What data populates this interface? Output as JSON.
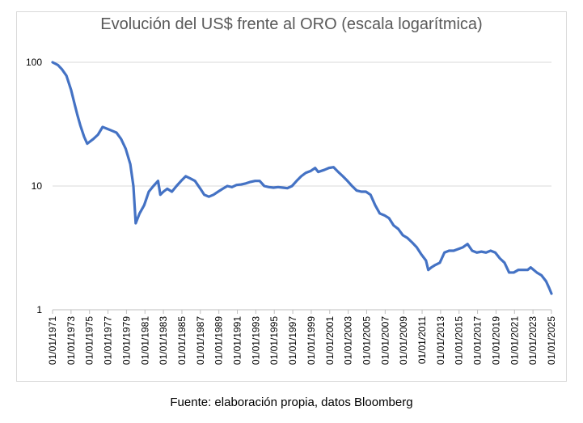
{
  "chart_data": {
    "type": "line",
    "title": "Evolución del US$ frente al ORO  (escala logarítmica)",
    "xlabel": "",
    "ylabel": "",
    "y_scale": "log",
    "ylim": [
      1,
      100
    ],
    "y_ticks": [
      "1",
      "10",
      "100"
    ],
    "x_tick_labels": [
      "01/01/1971",
      "01/01/1973",
      "01/01/1975",
      "01/01/1977",
      "01/01/1979",
      "01/01/1981",
      "01/01/1983",
      "01/01/1985",
      "01/01/1987",
      "01/01/1989",
      "01/01/1991",
      "01/01/1993",
      "01/01/1995",
      "01/01/1997",
      "01/01/1999",
      "01/01/2001",
      "01/01/2003",
      "01/01/2005",
      "01/01/2007",
      "01/01/2009",
      "01/01/2011",
      "01/01/2013",
      "01/01/2015",
      "01/01/2017",
      "01/01/2019",
      "01/01/2021",
      "01/01/2023",
      "01/01/2025"
    ],
    "grid": true,
    "legend": "none",
    "color": "#4472c4",
    "series": [
      {
        "points": [
          [
            "1971-01-01",
            100
          ],
          [
            "1971-08-01",
            95
          ],
          [
            "1972-01-01",
            88
          ],
          [
            "1972-07-01",
            78
          ],
          [
            "1973-01-01",
            60
          ],
          [
            "1973-06-01",
            45
          ],
          [
            "1973-09-01",
            38
          ],
          [
            "1974-01-01",
            31
          ],
          [
            "1974-06-01",
            25
          ],
          [
            "1974-10-01",
            22
          ],
          [
            "1975-06-01",
            24
          ],
          [
            "1975-12-01",
            26
          ],
          [
            "1976-06-01",
            30
          ],
          [
            "1976-12-01",
            29
          ],
          [
            "1977-06-01",
            28
          ],
          [
            "1977-12-01",
            27
          ],
          [
            "1978-06-01",
            24
          ],
          [
            "1978-12-01",
            20
          ],
          [
            "1979-06-01",
            15
          ],
          [
            "1979-10-01",
            10
          ],
          [
            "1980-01-01",
            5
          ],
          [
            "1980-06-01",
            6
          ],
          [
            "1980-12-01",
            7
          ],
          [
            "1981-06-01",
            9
          ],
          [
            "1981-12-01",
            10
          ],
          [
            "1982-06-01",
            11
          ],
          [
            "1982-09-01",
            8.5
          ],
          [
            "1983-01-01",
            9
          ],
          [
            "1983-06-01",
            9.5
          ],
          [
            "1983-12-01",
            9
          ],
          [
            "1984-06-01",
            10
          ],
          [
            "1984-12-01",
            11
          ],
          [
            "1985-06-01",
            12
          ],
          [
            "1985-12-01",
            11.5
          ],
          [
            "1986-06-01",
            11
          ],
          [
            "1987-01-01",
            9.5
          ],
          [
            "1987-06-01",
            8.5
          ],
          [
            "1987-12-01",
            8.2
          ],
          [
            "1988-06-01",
            8.5
          ],
          [
            "1988-12-01",
            9
          ],
          [
            "1989-06-01",
            9.5
          ],
          [
            "1989-12-01",
            10
          ],
          [
            "1990-06-01",
            9.8
          ],
          [
            "1990-12-01",
            10.2
          ],
          [
            "1991-06-01",
            10.3
          ],
          [
            "1991-12-01",
            10.5
          ],
          [
            "1992-06-01",
            10.8
          ],
          [
            "1992-12-01",
            11
          ],
          [
            "1993-06-01",
            11
          ],
          [
            "1993-12-01",
            10
          ],
          [
            "1994-06-01",
            9.8
          ],
          [
            "1994-12-01",
            9.7
          ],
          [
            "1995-06-01",
            9.8
          ],
          [
            "1995-12-01",
            9.7
          ],
          [
            "1996-06-01",
            9.6
          ],
          [
            "1996-12-01",
            10
          ],
          [
            "1997-06-01",
            11
          ],
          [
            "1997-12-01",
            12
          ],
          [
            "1998-06-01",
            12.8
          ],
          [
            "1998-12-01",
            13.2
          ],
          [
            "1999-06-01",
            14
          ],
          [
            "1999-10-01",
            13
          ],
          [
            "2000-06-01",
            13.5
          ],
          [
            "2000-12-01",
            14
          ],
          [
            "2001-06-01",
            14.2
          ],
          [
            "2001-12-01",
            13
          ],
          [
            "2002-06-01",
            12
          ],
          [
            "2002-12-01",
            11
          ],
          [
            "2003-06-01",
            10
          ],
          [
            "2003-12-01",
            9.2
          ],
          [
            "2004-06-01",
            9
          ],
          [
            "2004-12-01",
            9
          ],
          [
            "2005-06-01",
            8.5
          ],
          [
            "2005-12-01",
            7
          ],
          [
            "2006-06-01",
            6
          ],
          [
            "2006-12-01",
            5.8
          ],
          [
            "2007-06-01",
            5.5
          ],
          [
            "2007-12-01",
            4.8
          ],
          [
            "2008-06-01",
            4.5
          ],
          [
            "2008-12-01",
            4
          ],
          [
            "2009-06-01",
            3.8
          ],
          [
            "2009-12-01",
            3.5
          ],
          [
            "2010-06-01",
            3.2
          ],
          [
            "2010-12-01",
            2.8
          ],
          [
            "2011-06-01",
            2.5
          ],
          [
            "2011-09-01",
            2.1
          ],
          [
            "2012-01-01",
            2.2
          ],
          [
            "2012-06-01",
            2.3
          ],
          [
            "2012-12-01",
            2.4
          ],
          [
            "2013-06-01",
            2.9
          ],
          [
            "2013-12-01",
            3
          ],
          [
            "2014-06-01",
            3
          ],
          [
            "2014-12-01",
            3.1
          ],
          [
            "2015-06-01",
            3.2
          ],
          [
            "2015-12-01",
            3.4
          ],
          [
            "2016-06-01",
            3
          ],
          [
            "2016-12-01",
            2.9
          ],
          [
            "2017-06-01",
            2.95
          ],
          [
            "2017-12-01",
            2.9
          ],
          [
            "2018-06-01",
            3
          ],
          [
            "2018-12-01",
            2.9
          ],
          [
            "2019-06-01",
            2.6
          ],
          [
            "2019-12-01",
            2.4
          ],
          [
            "2020-06-01",
            2
          ],
          [
            "2020-12-01",
            2
          ],
          [
            "2021-06-01",
            2.1
          ],
          [
            "2021-12-01",
            2.1
          ],
          [
            "2022-06-01",
            2.1
          ],
          [
            "2022-10-01",
            2.2
          ],
          [
            "2023-06-01",
            2
          ],
          [
            "2023-12-01",
            1.9
          ],
          [
            "2024-06-01",
            1.7
          ],
          [
            "2024-10-01",
            1.5
          ],
          [
            "2025-01-01",
            1.35
          ]
        ]
      }
    ]
  },
  "source_note": "Fuente: elaboración propia, datos Bloomberg"
}
